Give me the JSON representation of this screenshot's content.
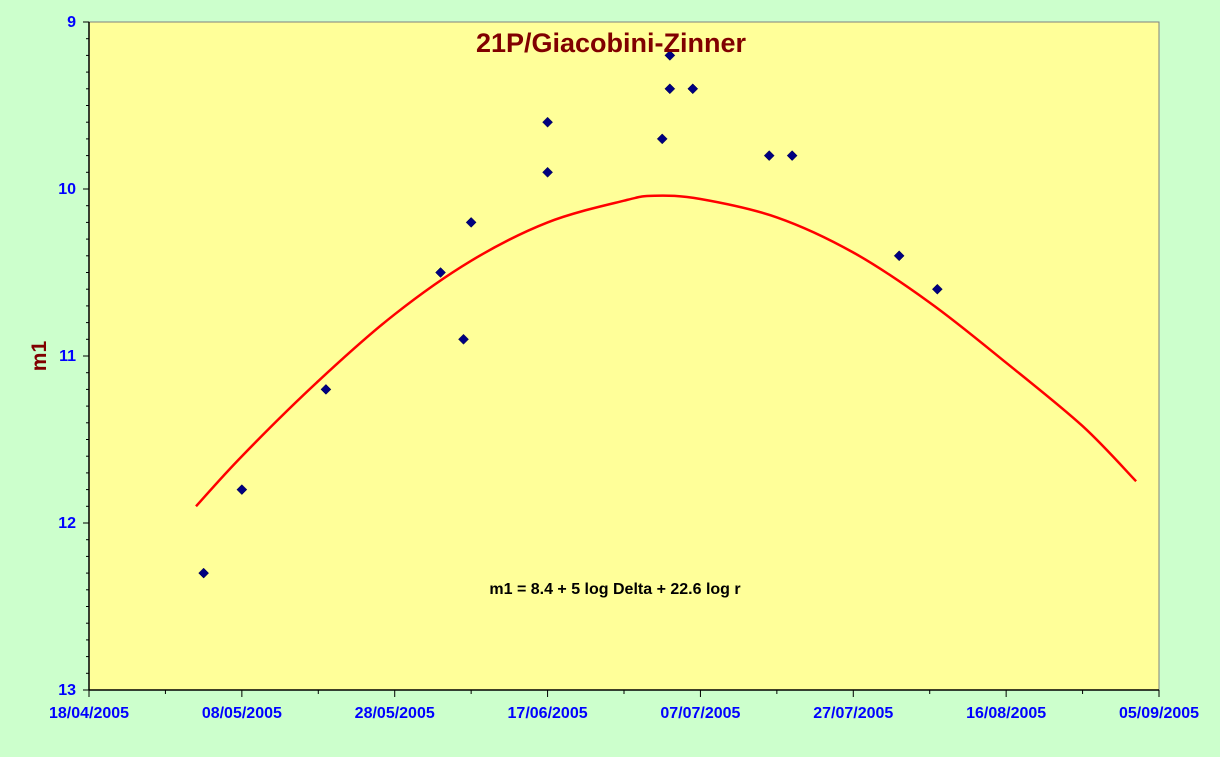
{
  "chart_data": {
    "type": "scatter",
    "title": "21P/Giacobini-Zinner",
    "xlabel": "",
    "ylabel": "m1",
    "x_tick_labels": [
      "18/04/2005",
      "08/05/2005",
      "28/05/2005",
      "17/06/2005",
      "07/07/2005",
      "27/07/2005",
      "16/08/2005",
      "05/09/2005"
    ],
    "y_tick_labels": [
      "9",
      "10",
      "11",
      "12",
      "13"
    ],
    "xlim": [
      "2005-04-18",
      "2005-09-05"
    ],
    "ylim": [
      9,
      13
    ],
    "y_inverted": true,
    "annotation": "m1 = 8.4 + 5 log Delta + 22.6  log r",
    "grid": false,
    "colors": {
      "plot_background": "#ffff99",
      "page_background": "#ccffcc",
      "points": "#000080",
      "curve": "#ff0000",
      "title": "#800000",
      "ticks": "#0000ff"
    },
    "series": [
      {
        "type": "scatter",
        "points": [
          {
            "date": "2005-05-03",
            "m1": 12.3
          },
          {
            "date": "2005-05-08",
            "m1": 11.8
          },
          {
            "date": "2005-05-19",
            "m1": 11.2
          },
          {
            "date": "2005-06-03",
            "m1": 10.5
          },
          {
            "date": "2005-06-06",
            "m1": 10.9
          },
          {
            "date": "2005-06-07",
            "m1": 10.2
          },
          {
            "date": "2005-06-17",
            "m1": 9.9
          },
          {
            "date": "2005-06-17",
            "m1": 9.6
          },
          {
            "date": "2005-07-02",
            "m1": 9.7
          },
          {
            "date": "2005-07-03",
            "m1": 9.2
          },
          {
            "date": "2005-07-03",
            "m1": 9.4
          },
          {
            "date": "2005-07-06",
            "m1": 9.4
          },
          {
            "date": "2005-07-16",
            "m1": 9.8
          },
          {
            "date": "2005-07-19",
            "m1": 9.8
          },
          {
            "date": "2005-08-02",
            "m1": 10.4
          },
          {
            "date": "2005-08-07",
            "m1": 10.6
          }
        ]
      },
      {
        "type": "line",
        "points": [
          {
            "date": "2005-05-02",
            "m1": 11.9
          },
          {
            "date": "2005-05-08",
            "m1": 11.6
          },
          {
            "date": "2005-05-18",
            "m1": 11.15
          },
          {
            "date": "2005-05-28",
            "m1": 10.75
          },
          {
            "date": "2005-06-07",
            "m1": 10.43
          },
          {
            "date": "2005-06-17",
            "m1": 10.2
          },
          {
            "date": "2005-06-27",
            "m1": 10.07
          },
          {
            "date": "2005-07-01",
            "m1": 10.04
          },
          {
            "date": "2005-07-07",
            "m1": 10.06
          },
          {
            "date": "2005-07-17",
            "m1": 10.17
          },
          {
            "date": "2005-07-27",
            "m1": 10.38
          },
          {
            "date": "2005-08-06",
            "m1": 10.68
          },
          {
            "date": "2005-08-16",
            "m1": 11.04
          },
          {
            "date": "2005-08-26",
            "m1": 11.42
          },
          {
            "date": "2005-09-02",
            "m1": 11.75
          }
        ]
      }
    ]
  }
}
